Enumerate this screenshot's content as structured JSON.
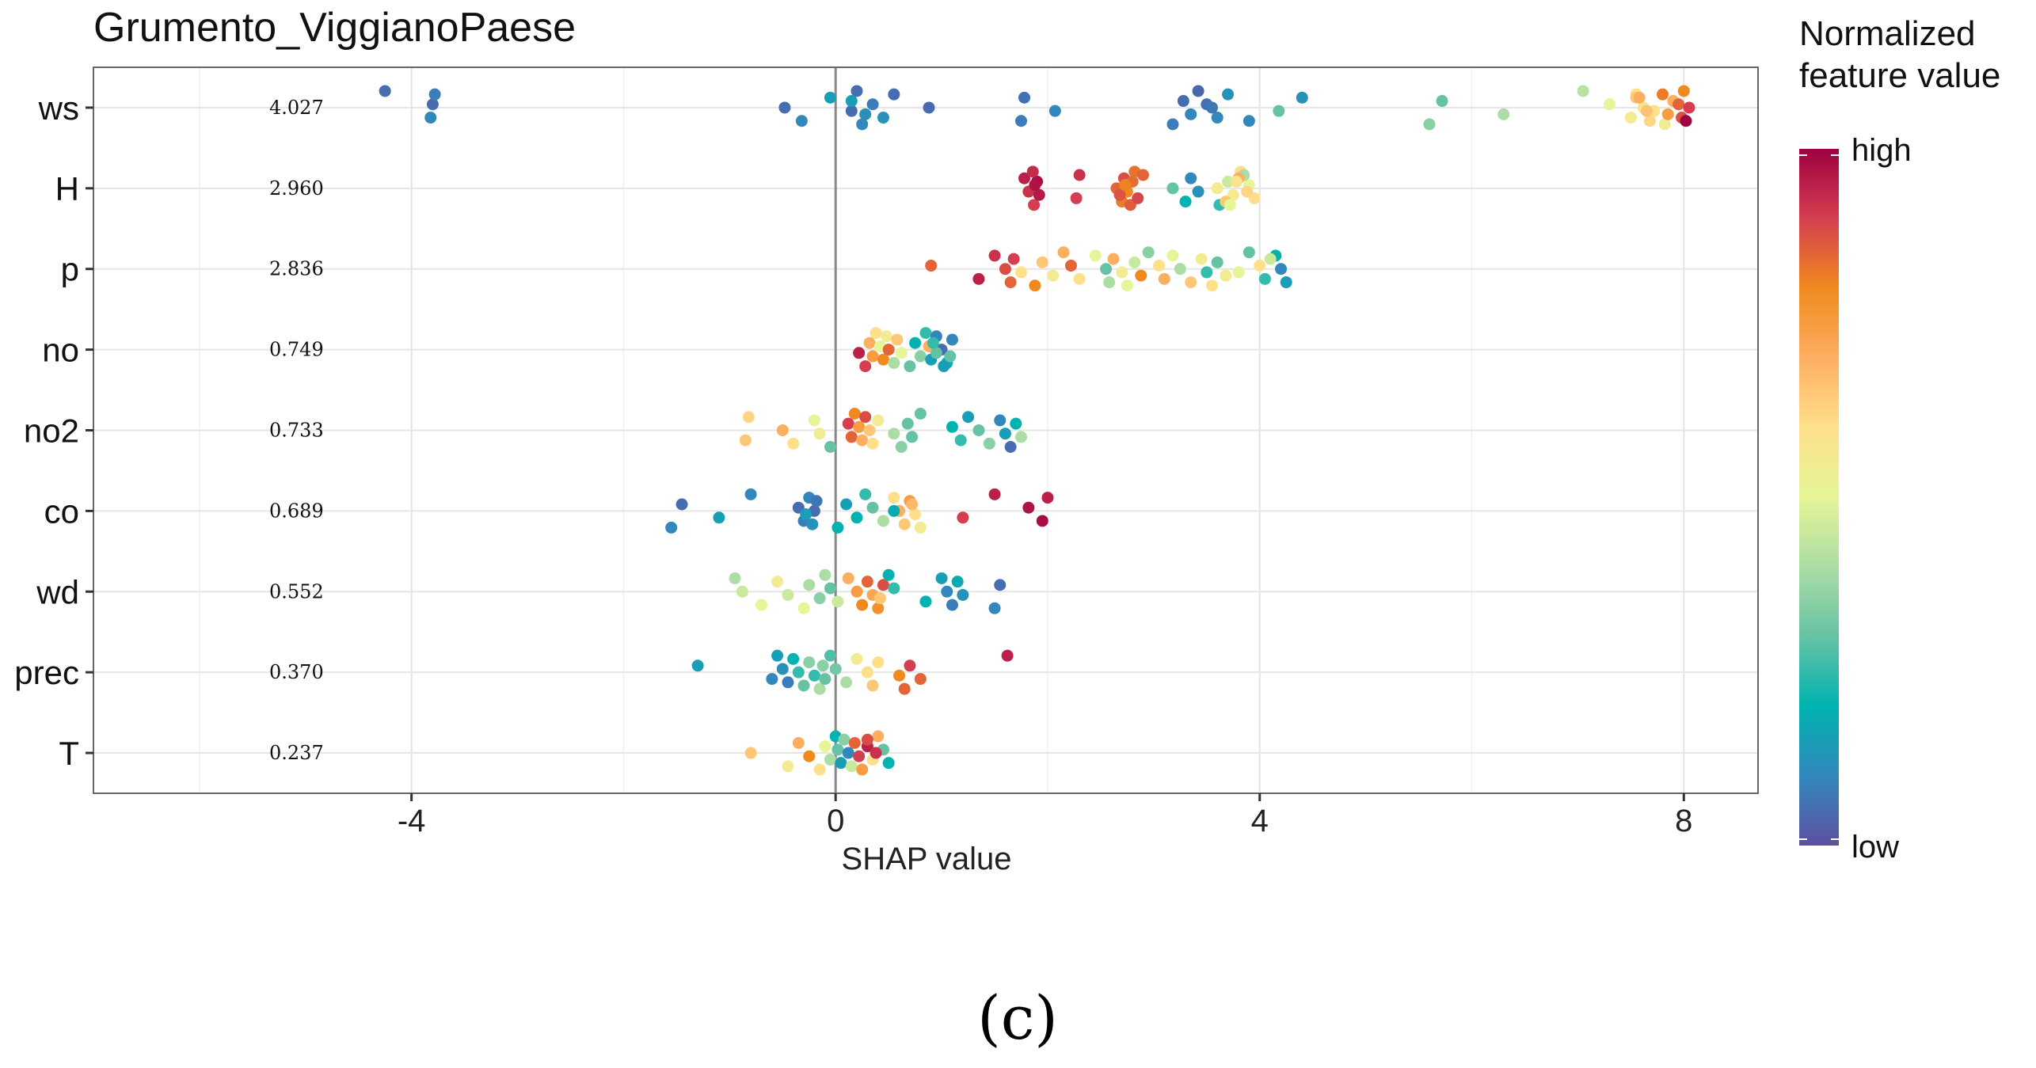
{
  "chart_data": {
    "type": "scatter",
    "subtype": "shap-beeswarm",
    "title": "Grumento_ViggianoPaese",
    "xlabel": "SHAP value",
    "ylabel": "",
    "xlim": [
      -7,
      8.7
    ],
    "x_ticks": [
      -4,
      0,
      4,
      8
    ],
    "x_tick_labels": [
      "-4",
      "0",
      "4",
      "8"
    ],
    "grid": true,
    "legend": {
      "title_lines": [
        "Normalized",
        "feature value"
      ],
      "high_label": "high",
      "low_label": "low",
      "placement": "right",
      "colorscale": [
        "#5e4fa2",
        "#3288bd",
        "#00b3b0",
        "#66c2a5",
        "#abdda4",
        "#e6f598",
        "#fee08b",
        "#fdae61",
        "#f08a1e",
        "#d53e4f",
        "#9e0142"
      ]
    },
    "caption": "(c)",
    "features": [
      {
        "name": "ws",
        "mean_abs": "4.027",
        "points": [
          [
            -4.25,
            0.05
          ],
          [
            -3.8,
            0.05
          ],
          [
            -3.82,
            0.1
          ],
          [
            -3.78,
            0.08
          ],
          [
            -0.48,
            0.05
          ],
          [
            -0.32,
            0.1
          ],
          [
            -0.05,
            0.15
          ],
          [
            0.15,
            0.05
          ],
          [
            0.25,
            0.1
          ],
          [
            0.15,
            0.15
          ],
          [
            0.28,
            0.12
          ],
          [
            0.2,
            0.05
          ],
          [
            0.35,
            0.08
          ],
          [
            0.45,
            0.12
          ],
          [
            0.55,
            0.05
          ],
          [
            0.88,
            0.05
          ],
          [
            1.75,
            0.08
          ],
          [
            1.78,
            0.06
          ],
          [
            2.07,
            0.1
          ],
          [
            3.18,
            0.08
          ],
          [
            3.28,
            0.05
          ],
          [
            3.35,
            0.1
          ],
          [
            3.42,
            0.04
          ],
          [
            3.5,
            0.06
          ],
          [
            3.6,
            0.1
          ],
          [
            3.7,
            0.12
          ],
          [
            3.55,
            0.07
          ],
          [
            3.9,
            0.1
          ],
          [
            4.4,
            0.12
          ],
          [
            4.18,
            0.3
          ],
          [
            5.6,
            0.35
          ],
          [
            5.72,
            0.3
          ],
          [
            6.3,
            0.4
          ],
          [
            7.05,
            0.42
          ],
          [
            7.3,
            0.5
          ],
          [
            7.5,
            0.55
          ],
          [
            7.55,
            0.6
          ],
          [
            7.62,
            0.58
          ],
          [
            7.68,
            0.62
          ],
          [
            7.55,
            0.65
          ],
          [
            7.72,
            0.6
          ],
          [
            7.82,
            0.55
          ],
          [
            7.9,
            0.7
          ],
          [
            7.85,
            0.75
          ],
          [
            8.0,
            0.8
          ],
          [
            7.95,
            0.85
          ],
          [
            7.98,
            0.88
          ],
          [
            7.8,
            0.82
          ],
          [
            8.05,
            0.9
          ],
          [
            8.02,
            1.0
          ],
          [
            7.58,
            0.7
          ],
          [
            7.65,
            0.66
          ]
        ]
      },
      {
        "name": "H",
        "mean_abs": "2.960",
        "points": [
          [
            1.78,
            0.95
          ],
          [
            1.82,
            0.92
          ],
          [
            1.87,
            0.9
          ],
          [
            1.9,
            0.98
          ],
          [
            1.92,
            0.96
          ],
          [
            1.86,
            0.93
          ],
          [
            1.88,
            0.97
          ],
          [
            2.27,
            0.9
          ],
          [
            2.3,
            0.92
          ],
          [
            2.65,
            0.85
          ],
          [
            2.7,
            0.82
          ],
          [
            2.72,
            0.88
          ],
          [
            2.75,
            0.8
          ],
          [
            2.78,
            0.86
          ],
          [
            2.8,
            0.84
          ],
          [
            2.68,
            0.87
          ],
          [
            2.82,
            0.83
          ],
          [
            2.73,
            0.81
          ],
          [
            2.85,
            0.89
          ],
          [
            2.9,
            0.85
          ],
          [
            3.18,
            0.3
          ],
          [
            3.3,
            0.2
          ],
          [
            3.35,
            0.1
          ],
          [
            3.42,
            0.12
          ],
          [
            3.62,
            0.25
          ],
          [
            3.7,
            0.45
          ],
          [
            3.75,
            0.55
          ],
          [
            3.82,
            0.6
          ],
          [
            3.9,
            0.5
          ],
          [
            3.95,
            0.6
          ],
          [
            3.85,
            0.4
          ],
          [
            3.6,
            0.55
          ],
          [
            3.68,
            0.65
          ],
          [
            3.8,
            0.7
          ],
          [
            3.88,
            0.62
          ],
          [
            3.72,
            0.5
          ],
          [
            3.78,
            0.58
          ]
        ]
      },
      {
        "name": "p",
        "mean_abs": "2.836",
        "points": [
          [
            0.9,
            0.85
          ],
          [
            1.35,
            0.95
          ],
          [
            1.5,
            0.92
          ],
          [
            1.6,
            0.88
          ],
          [
            1.65,
            0.85
          ],
          [
            1.68,
            0.9
          ],
          [
            1.75,
            0.6
          ],
          [
            1.88,
            0.8
          ],
          [
            1.95,
            0.65
          ],
          [
            2.05,
            0.55
          ],
          [
            2.15,
            0.7
          ],
          [
            2.22,
            0.85
          ],
          [
            2.3,
            0.6
          ],
          [
            2.45,
            0.5
          ],
          [
            2.55,
            0.3
          ],
          [
            2.58,
            0.4
          ],
          [
            2.62,
            0.7
          ],
          [
            2.7,
            0.55
          ],
          [
            2.75,
            0.5
          ],
          [
            2.82,
            0.45
          ],
          [
            2.88,
            0.8
          ],
          [
            2.95,
            0.35
          ],
          [
            3.05,
            0.6
          ],
          [
            3.1,
            0.7
          ],
          [
            3.18,
            0.5
          ],
          [
            3.25,
            0.4
          ],
          [
            3.35,
            0.65
          ],
          [
            3.45,
            0.55
          ],
          [
            3.5,
            0.25
          ],
          [
            3.55,
            0.6
          ],
          [
            3.6,
            0.3
          ],
          [
            3.68,
            0.55
          ],
          [
            3.9,
            0.3
          ],
          [
            4.0,
            0.6
          ],
          [
            4.05,
            0.25
          ],
          [
            4.15,
            0.2
          ],
          [
            4.2,
            0.1
          ],
          [
            4.25,
            0.15
          ],
          [
            4.1,
            0.45
          ],
          [
            3.8,
            0.5
          ]
        ]
      },
      {
        "name": "no",
        "mean_abs": "0.749",
        "points": [
          [
            0.22,
            0.95
          ],
          [
            0.28,
            0.9
          ],
          [
            0.32,
            0.7
          ],
          [
            0.35,
            0.75
          ],
          [
            0.38,
            0.6
          ],
          [
            0.42,
            0.5
          ],
          [
            0.45,
            0.8
          ],
          [
            0.48,
            0.55
          ],
          [
            0.5,
            0.85
          ],
          [
            0.55,
            0.4
          ],
          [
            0.58,
            0.65
          ],
          [
            0.62,
            0.5
          ],
          [
            0.7,
            0.3
          ],
          [
            0.75,
            0.2
          ],
          [
            0.8,
            0.35
          ],
          [
            0.85,
            0.25
          ],
          [
            0.88,
            0.7
          ],
          [
            0.9,
            0.15
          ],
          [
            0.95,
            0.1
          ],
          [
            1.0,
            0.05
          ],
          [
            1.05,
            0.2
          ],
          [
            1.1,
            0.1
          ],
          [
            0.95,
            0.3
          ],
          [
            1.02,
            0.15
          ],
          [
            0.92,
            0.25
          ],
          [
            1.08,
            0.3
          ]
        ]
      },
      {
        "name": "no2",
        "mean_abs": "0.733",
        "points": [
          [
            -0.85,
            0.65
          ],
          [
            -0.82,
            0.62
          ],
          [
            -0.5,
            0.7
          ],
          [
            -0.4,
            0.6
          ],
          [
            -0.2,
            0.5
          ],
          [
            -0.15,
            0.55
          ],
          [
            -0.05,
            0.3
          ],
          [
            0.12,
            0.9
          ],
          [
            0.15,
            0.85
          ],
          [
            0.18,
            0.8
          ],
          [
            0.22,
            0.75
          ],
          [
            0.25,
            0.7
          ],
          [
            0.28,
            0.88
          ],
          [
            0.32,
            0.65
          ],
          [
            0.35,
            0.6
          ],
          [
            0.4,
            0.55
          ],
          [
            0.55,
            0.4
          ],
          [
            0.62,
            0.35
          ],
          [
            0.68,
            0.3
          ],
          [
            0.72,
            0.3
          ],
          [
            0.8,
            0.3
          ],
          [
            1.1,
            0.2
          ],
          [
            1.18,
            0.25
          ],
          [
            1.25,
            0.15
          ],
          [
            1.35,
            0.3
          ],
          [
            1.45,
            0.35
          ],
          [
            1.55,
            0.1
          ],
          [
            1.6,
            0.15
          ],
          [
            1.65,
            0.05
          ],
          [
            1.7,
            0.2
          ],
          [
            1.75,
            0.4
          ]
        ]
      },
      {
        "name": "co",
        "mean_abs": "0.689",
        "points": [
          [
            -1.55,
            0.1
          ],
          [
            -1.45,
            0.05
          ],
          [
            -1.1,
            0.15
          ],
          [
            -0.8,
            0.1
          ],
          [
            -0.35,
            0.05
          ],
          [
            -0.3,
            0.08
          ],
          [
            -0.25,
            0.1
          ],
          [
            -0.2,
            0.05
          ],
          [
            -0.22,
            0.12
          ],
          [
            -0.18,
            0.07
          ],
          [
            -0.28,
            0.15
          ],
          [
            0.02,
            0.2
          ],
          [
            0.1,
            0.15
          ],
          [
            0.2,
            0.2
          ],
          [
            0.28,
            0.25
          ],
          [
            0.35,
            0.3
          ],
          [
            0.45,
            0.4
          ],
          [
            0.55,
            0.6
          ],
          [
            0.6,
            0.7
          ],
          [
            0.65,
            0.65
          ],
          [
            0.7,
            0.75
          ],
          [
            0.75,
            0.6
          ],
          [
            0.8,
            0.55
          ],
          [
            0.72,
            0.68
          ],
          [
            1.2,
            0.9
          ],
          [
            1.5,
            0.95
          ],
          [
            1.82,
            0.97
          ],
          [
            1.95,
            0.98
          ],
          [
            2.0,
            0.95
          ],
          [
            0.55,
            0.18
          ]
        ]
      },
      {
        "name": "wd",
        "mean_abs": "0.552",
        "points": [
          [
            -0.95,
            0.4
          ],
          [
            -0.88,
            0.45
          ],
          [
            -0.7,
            0.5
          ],
          [
            -0.55,
            0.55
          ],
          [
            -0.45,
            0.45
          ],
          [
            -0.3,
            0.5
          ],
          [
            -0.25,
            0.4
          ],
          [
            -0.15,
            0.35
          ],
          [
            -0.1,
            0.4
          ],
          [
            -0.05,
            0.3
          ],
          [
            0.02,
            0.45
          ],
          [
            0.12,
            0.7
          ],
          [
            0.2,
            0.75
          ],
          [
            0.25,
            0.8
          ],
          [
            0.3,
            0.85
          ],
          [
            0.35,
            0.72
          ],
          [
            0.4,
            0.78
          ],
          [
            0.45,
            0.88
          ],
          [
            0.42,
            0.65
          ],
          [
            0.5,
            0.2
          ],
          [
            0.55,
            0.25
          ],
          [
            0.85,
            0.2
          ],
          [
            1.0,
            0.15
          ],
          [
            1.05,
            0.1
          ],
          [
            1.1,
            0.08
          ],
          [
            1.15,
            0.18
          ],
          [
            1.2,
            0.12
          ],
          [
            1.5,
            0.1
          ],
          [
            1.55,
            0.05
          ]
        ]
      },
      {
        "name": "prec",
        "mean_abs": "0.370",
        "points": [
          [
            -1.3,
            0.15
          ],
          [
            -0.6,
            0.1
          ],
          [
            -0.55,
            0.15
          ],
          [
            -0.5,
            0.12
          ],
          [
            -0.45,
            0.08
          ],
          [
            -0.4,
            0.2
          ],
          [
            -0.35,
            0.25
          ],
          [
            -0.3,
            0.3
          ],
          [
            -0.25,
            0.35
          ],
          [
            -0.2,
            0.25
          ],
          [
            -0.15,
            0.4
          ],
          [
            -0.12,
            0.35
          ],
          [
            -0.1,
            0.3
          ],
          [
            -0.05,
            0.28
          ],
          [
            0.0,
            0.32
          ],
          [
            0.1,
            0.4
          ],
          [
            0.2,
            0.55
          ],
          [
            0.3,
            0.6
          ],
          [
            0.35,
            0.65
          ],
          [
            0.4,
            0.6
          ],
          [
            0.6,
            0.8
          ],
          [
            0.65,
            0.85
          ],
          [
            0.7,
            0.9
          ],
          [
            0.8,
            0.85
          ],
          [
            1.62,
            0.95
          ]
        ]
      },
      {
        "name": "T",
        "mean_abs": "0.237",
        "points": [
          [
            -0.8,
            0.65
          ],
          [
            -0.45,
            0.55
          ],
          [
            -0.35,
            0.7
          ],
          [
            -0.25,
            0.8
          ],
          [
            -0.15,
            0.6
          ],
          [
            -0.1,
            0.5
          ],
          [
            -0.05,
            0.4
          ],
          [
            0.0,
            0.2
          ],
          [
            0.02,
            0.3
          ],
          [
            0.05,
            0.15
          ],
          [
            0.08,
            0.35
          ],
          [
            0.12,
            0.1
          ],
          [
            0.15,
            0.45
          ],
          [
            0.18,
            0.85
          ],
          [
            0.22,
            0.9
          ],
          [
            0.25,
            0.75
          ],
          [
            0.3,
            0.95
          ],
          [
            0.35,
            0.6
          ],
          [
            0.4,
            0.7
          ],
          [
            0.45,
            0.3
          ],
          [
            0.5,
            0.2
          ],
          [
            0.3,
            0.88
          ],
          [
            0.38,
            0.92
          ]
        ]
      }
    ]
  }
}
